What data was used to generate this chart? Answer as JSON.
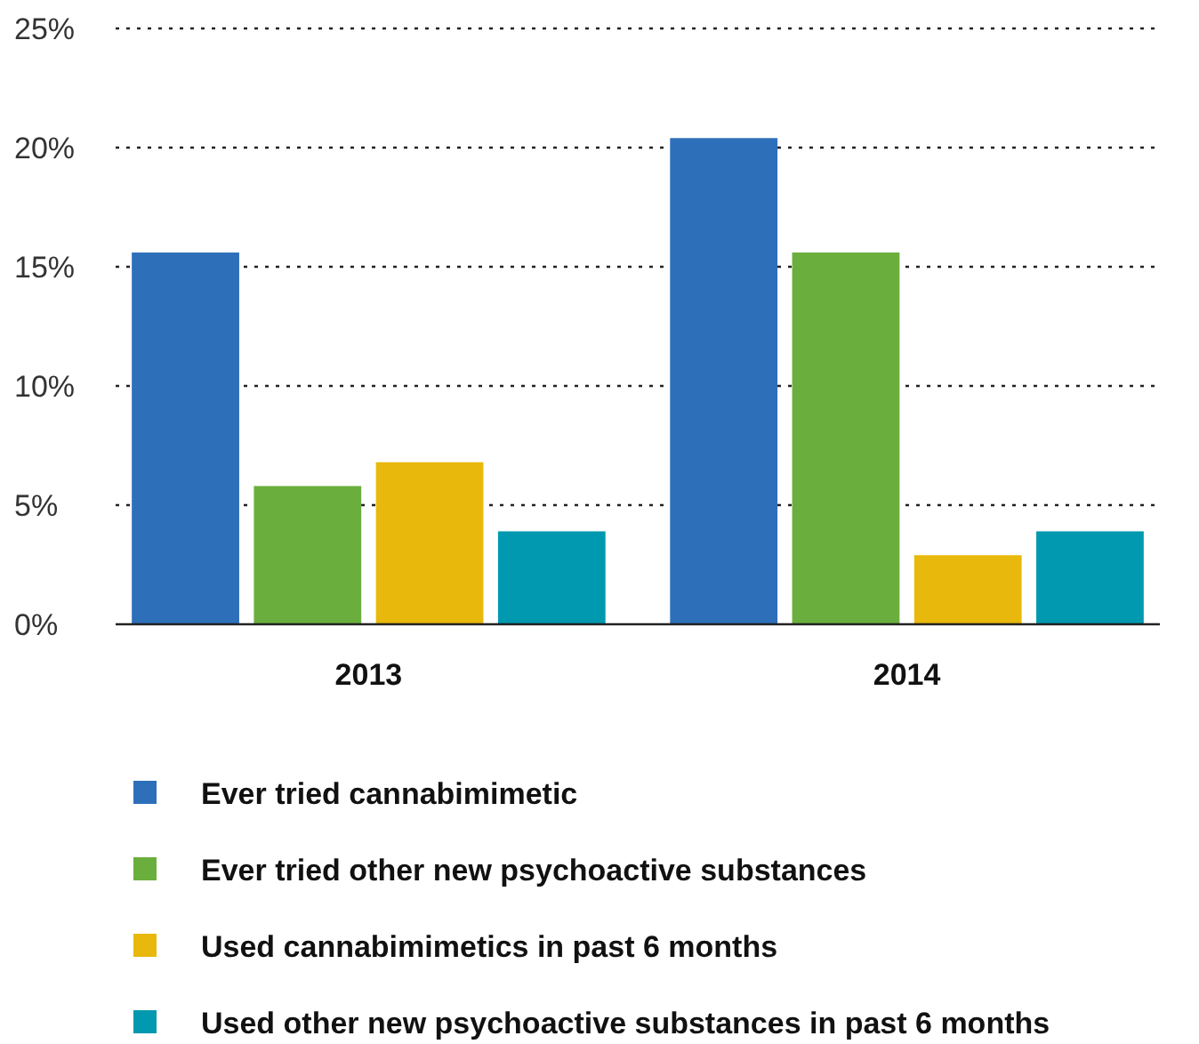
{
  "chart_data": {
    "type": "bar",
    "categories": [
      "2013",
      "2014"
    ],
    "series": [
      {
        "name": "Ever tried cannabimimetic",
        "color": "#2e6fba",
        "values": [
          15.6,
          20.4
        ]
      },
      {
        "name": "Ever tried other new psychoactive substances",
        "color": "#6aaf3d",
        "values": [
          5.8,
          15.6
        ]
      },
      {
        "name": "Used cannabimimetics in past 6 months",
        "color": "#e8b90c",
        "values": [
          6.8,
          2.9
        ]
      },
      {
        "name": "Used other new psychoactive substances in past 6 months",
        "color": "#0099b0",
        "values": [
          3.9,
          3.9
        ]
      }
    ],
    "ylim": [
      0,
      25
    ],
    "yticks": [
      {
        "value": 0,
        "label": "0%"
      },
      {
        "value": 5,
        "label": "5%"
      },
      {
        "value": 10,
        "label": "10%"
      },
      {
        "value": 15,
        "label": "15%"
      },
      {
        "value": 20,
        "label": "20%"
      },
      {
        "value": 25,
        "label": "25%"
      }
    ],
    "grid": "y",
    "legend": "bottom"
  }
}
